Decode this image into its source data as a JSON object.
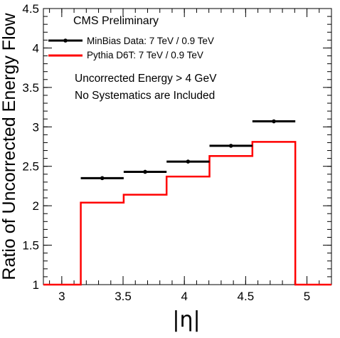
{
  "chart_data": {
    "type": "line",
    "title": "CMS Preliminary",
    "xlabel": "|η|",
    "ylabel": "Ratio of Uncorrected Energy Flow",
    "xlim": [
      2.85,
      5.2
    ],
    "ylim": [
      1,
      4.5
    ],
    "x_ticks": [
      "3",
      "3.5",
      "4",
      "4.5",
      "5"
    ],
    "y_ticks": [
      "1",
      "1.5",
      "2",
      "2.5",
      "3",
      "3.5",
      "4",
      "4.5"
    ],
    "annotations": [
      "Uncorrected Energy > 4 GeV",
      "No Systematics are Included"
    ],
    "grid": false,
    "legend_position": "top-left",
    "series": [
      {
        "name": "MinBias Data: 7 TeV / 0.9 TeV",
        "kind": "points",
        "color": "#000000",
        "points": [
          {
            "x": 3.33,
            "y": 2.35,
            "xerr": 0.175
          },
          {
            "x": 3.68,
            "y": 2.43,
            "xerr": 0.175
          },
          {
            "x": 4.03,
            "y": 2.56,
            "xerr": 0.175
          },
          {
            "x": 4.38,
            "y": 2.76,
            "xerr": 0.175
          },
          {
            "x": 4.73,
            "y": 3.07,
            "xerr": 0.175
          }
        ]
      },
      {
        "name": "Pythia D6T: 7 TeV / 0.9 TeV",
        "kind": "histogram",
        "color": "#ff0000",
        "edges": [
          2.85,
          3.155,
          3.505,
          3.855,
          4.205,
          4.555,
          4.905,
          5.2
        ],
        "values": [
          1,
          2.04,
          2.14,
          2.37,
          2.63,
          2.81,
          1
        ]
      }
    ]
  }
}
